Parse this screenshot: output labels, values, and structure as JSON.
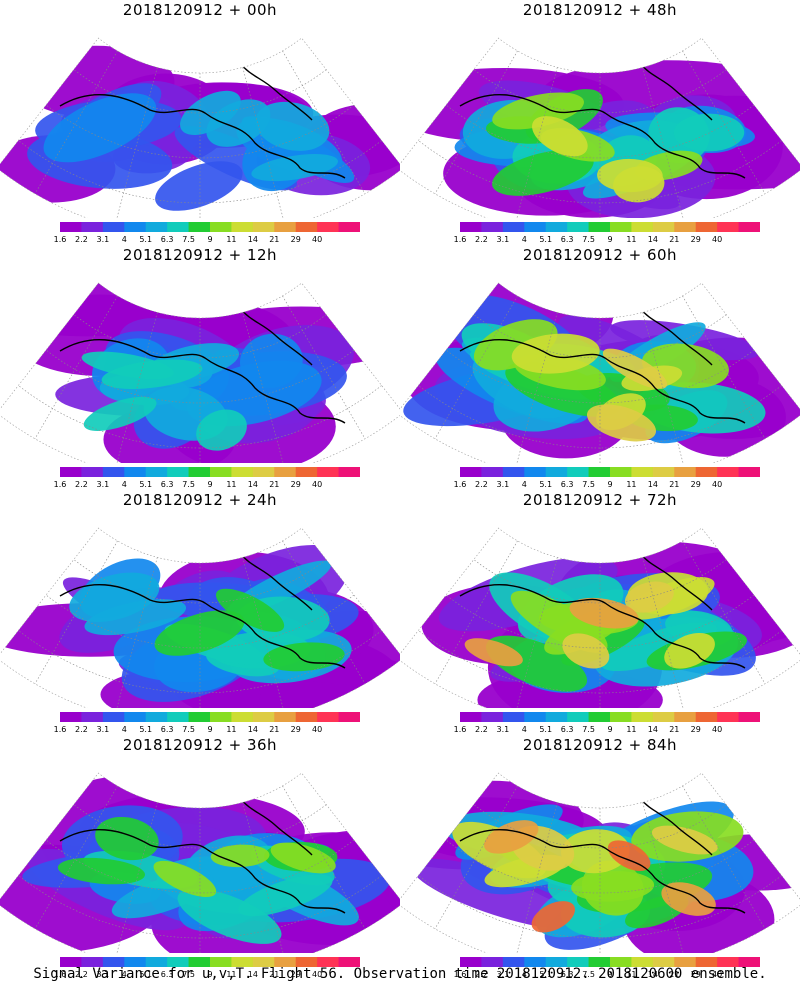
{
  "panels": [
    {
      "title": "2018120912 + 00h",
      "intensity": 0.15,
      "coverage": 0.55
    },
    {
      "title": "2018120912 + 48h",
      "intensity": 0.55,
      "coverage": 0.95
    },
    {
      "title": "2018120912 + 12h",
      "intensity": 0.25,
      "coverage": 0.7
    },
    {
      "title": "2018120912 + 60h",
      "intensity": 0.62,
      "coverage": 0.97
    },
    {
      "title": "2018120912 + 24h",
      "intensity": 0.35,
      "coverage": 0.8
    },
    {
      "title": "2018120912 + 72h",
      "intensity": 0.72,
      "coverage": 0.97
    },
    {
      "title": "2018120912 + 36h",
      "intensity": 0.42,
      "coverage": 0.85
    },
    {
      "title": "2018120912 + 84h",
      "intensity": 0.82,
      "coverage": 0.99
    }
  ],
  "colorbar": {
    "labels": [
      "1.6",
      "2.2",
      "3.1",
      "4",
      "5.1",
      "6.3",
      "7.5",
      "9",
      "11",
      "14",
      "21",
      "29",
      "40"
    ],
    "colors": [
      "#9900cc",
      "#7a22dd",
      "#3355ee",
      "#1188ee",
      "#11aadd",
      "#11ccbb",
      "#22cc33",
      "#88dd22",
      "#ccdd33",
      "#ddcc44",
      "#e8a040",
      "#ee6633",
      "#ff3355",
      "#ee1177"
    ]
  },
  "footer": "Signal Variance for u,v,T. Flight 56. Observation time 2018120912. 2018120600 ensemble."
}
